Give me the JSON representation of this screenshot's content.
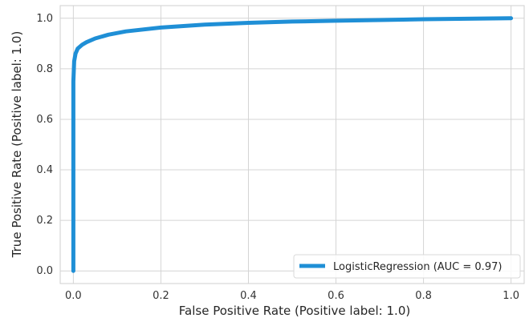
{
  "chart_data": {
    "type": "line",
    "xlabel": "False Positive Rate (Positive label: 1.0)",
    "ylabel": "True Positive Rate (Positive label: 1.0)",
    "xlim": [
      -0.03,
      1.03
    ],
    "ylim": [
      -0.05,
      1.05
    ],
    "xticks": [
      0.0,
      0.2,
      0.4,
      0.6,
      0.8,
      1.0
    ],
    "yticks": [
      0.0,
      0.2,
      0.4,
      0.6,
      0.8,
      1.0
    ],
    "xtick_labels": [
      "0.0",
      "0.2",
      "0.4",
      "0.6",
      "0.8",
      "1.0"
    ],
    "ytick_labels": [
      "0.0",
      "0.2",
      "0.4",
      "0.6",
      "0.8",
      "1.0"
    ],
    "grid": true,
    "legend_position": "lower-right",
    "series": [
      {
        "name": "LogisticRegression (AUC = 0.97)",
        "color": "#1f8fd6",
        "x": [
          0.0,
          0.0,
          0.002,
          0.005,
          0.01,
          0.02,
          0.03,
          0.05,
          0.08,
          0.12,
          0.2,
          0.3,
          0.4,
          0.5,
          0.6,
          0.7,
          0.8,
          0.9,
          1.0
        ],
        "y": [
          0.0,
          0.75,
          0.83,
          0.86,
          0.88,
          0.895,
          0.905,
          0.92,
          0.935,
          0.948,
          0.963,
          0.975,
          0.982,
          0.987,
          0.99,
          0.993,
          0.996,
          0.998,
          1.0
        ]
      }
    ]
  }
}
